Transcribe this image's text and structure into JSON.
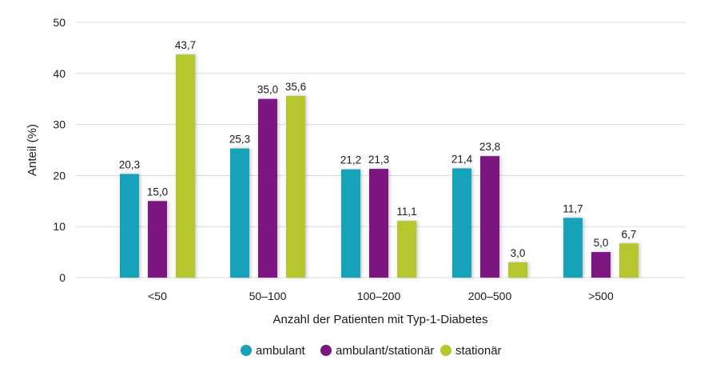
{
  "chart_data": {
    "type": "bar",
    "categories": [
      "<50",
      "50–100",
      "100–200",
      "200–500",
      ">500"
    ],
    "series": [
      {
        "name": "ambulant",
        "color": "#17a2b8",
        "values": [
          20.3,
          25.3,
          21.2,
          21.4,
          11.7
        ],
        "labels": [
          "20,3",
          "25,3",
          "21,2",
          "21,4",
          "11,7"
        ]
      },
      {
        "name": "ambulant/stationär",
        "color": "#7d1480",
        "values": [
          15.0,
          35.0,
          21.3,
          23.8,
          5.0
        ],
        "labels": [
          "15,0",
          "35,0",
          "21,3",
          "23,8",
          "5,0"
        ]
      },
      {
        "name": "stationär",
        "color": "#b5c62f",
        "values": [
          43.7,
          35.6,
          11.1,
          3.0,
          6.7
        ],
        "labels": [
          "43,7",
          "35,6",
          "11,1",
          "3,0",
          "6,7"
        ]
      }
    ],
    "xlabel": "Anzahl der Patienten mit Typ-1-Diabetes",
    "ylabel": "Anteil (%)",
    "ylim": [
      0,
      50
    ],
    "yticks": [
      0,
      10,
      20,
      30,
      40,
      50
    ],
    "grid": true,
    "legend_position": "bottom"
  }
}
